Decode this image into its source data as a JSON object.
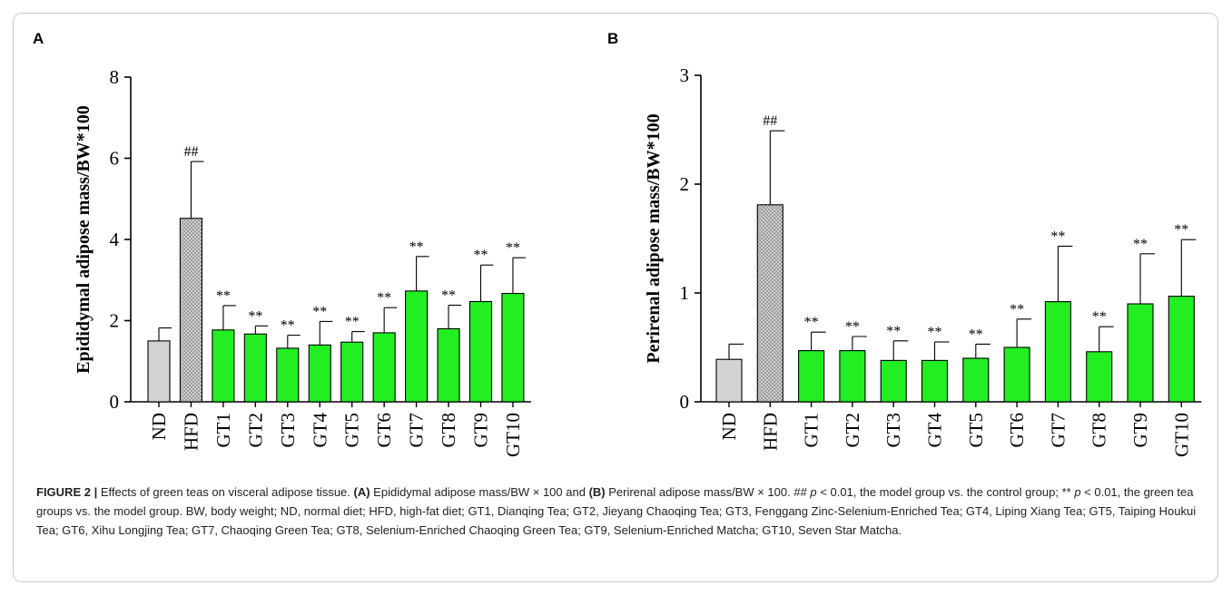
{
  "colors": {
    "control_bar": "#d3d3d3",
    "model_bar": "#c8c8c8",
    "tea_bar": "#22ee22",
    "outline": "#000000"
  },
  "chart_data": [
    {
      "panel": "A",
      "type": "bar",
      "ylabel": "Epididymal adipose mass/BW*100",
      "ylim": [
        0,
        8
      ],
      "yticks": [
        0,
        2,
        4,
        6,
        8
      ],
      "categories": [
        "ND",
        "HFD",
        "GT1",
        "GT2",
        "GT3",
        "GT4",
        "GT5",
        "GT6",
        "GT7",
        "GT8",
        "GT9",
        "GT10"
      ],
      "values": [
        1.5,
        4.52,
        1.77,
        1.67,
        1.32,
        1.4,
        1.47,
        1.7,
        2.73,
        1.8,
        2.47,
        2.67
      ],
      "error": [
        0.32,
        1.4,
        0.6,
        0.2,
        0.32,
        0.58,
        0.26,
        0.62,
        0.85,
        0.58,
        0.9,
        0.88
      ],
      "annotations": [
        "",
        "##",
        "**",
        "**",
        "**",
        "**",
        "**",
        "**",
        "**",
        "**",
        "**",
        "**"
      ],
      "fills": [
        "control",
        "model",
        "tea",
        "tea",
        "tea",
        "tea",
        "tea",
        "tea",
        "tea",
        "tea",
        "tea",
        "tea"
      ]
    },
    {
      "panel": "B",
      "type": "bar",
      "ylabel": "Perirenal adipose mass/BW*100",
      "ylim": [
        0,
        3
      ],
      "yticks": [
        0,
        1,
        2,
        3
      ],
      "categories": [
        "ND",
        "HFD",
        "GT1",
        "GT2",
        "GT3",
        "GT4",
        "GT5",
        "GT6",
        "GT7",
        "GT8",
        "GT9",
        "GT10"
      ],
      "values": [
        0.39,
        1.81,
        0.47,
        0.47,
        0.38,
        0.38,
        0.4,
        0.5,
        0.92,
        0.46,
        0.9,
        0.97
      ],
      "error": [
        0.14,
        0.68,
        0.17,
        0.13,
        0.18,
        0.17,
        0.13,
        0.26,
        0.51,
        0.23,
        0.46,
        0.52
      ],
      "annotations": [
        "",
        "##",
        "**",
        "**",
        "**",
        "**",
        "**",
        "**",
        "**",
        "**",
        "**",
        "**"
      ],
      "fills": [
        "control",
        "model",
        "tea",
        "tea",
        "tea",
        "tea",
        "tea",
        "tea",
        "tea",
        "tea",
        "tea",
        "tea"
      ]
    }
  ],
  "caption": {
    "label": "FIGURE 2 |",
    "text_1": " Effects of green teas on visceral adipose tissue. ",
    "ref_a": "(A)",
    "text_2": " Epididymal adipose mass/BW × 100 and ",
    "ref_b": "(B)",
    "text_3": " Perirenal adipose mass/BW × 100. ## ",
    "p_1": "p",
    "text_4": " < 0.01, the model group vs. the control group; ** ",
    "p_2": "p",
    "text_5": " < 0.01, the green tea groups vs. the model group. BW, body weight; ND, normal diet; HFD, high-fat diet; GT1, Dianqing Tea; GT2, Jieyang Chaoqing Tea; GT3, Fenggang Zinc-Selenium-Enriched Tea; GT4, Liping Xiang Tea; GT5, Taiping Houkui Tea; GT6, Xihu Longjing Tea; GT7, Chaoqing Green Tea; GT8, Selenium-Enriched Chaoqing Green Tea; GT9, Selenium-Enriched Matcha; GT10, Seven Star Matcha."
  }
}
